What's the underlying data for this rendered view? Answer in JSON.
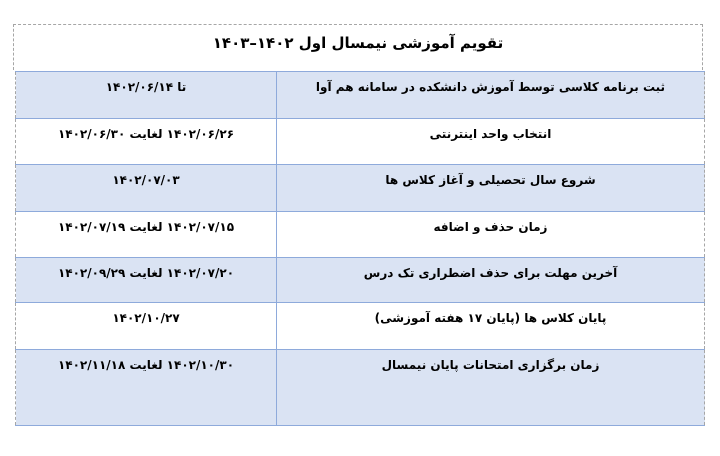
{
  "title": "تقویم آموزشی نیمسال اول ۱۴۰۲–۱۴۰۳",
  "row_colors": {
    "shaded": "#dae3f3",
    "plain": "#ffffff",
    "border": "#8eaadb"
  },
  "rows": [
    {
      "event": "ثبت برنامه کلاسی توسط آموزش دانشکده در سامانه هم آوا",
      "date": "تا ۱۴۰۲/۰۶/۱۴"
    },
    {
      "event": "انتخاب واحد اینترنتی",
      "date": "۱۴۰۲/۰۶/۲۶ لغایت ۱۴۰۲/۰۶/۳۰"
    },
    {
      "event": "شروع سال تحصیلی و آغاز کلاس ها",
      "date": "۱۴۰۲/۰۷/۰۳"
    },
    {
      "event": "زمان حذف و اضافه",
      "date": "۱۴۰۲/۰۷/۱۵ لغایت ۱۴۰۲/۰۷/۱۹"
    },
    {
      "event": "آخرین مهلت برای حذف اضطراری تک درس",
      "date": "۱۴۰۲/۰۷/۲۰ لغایت ۱۴۰۲/۰۹/۲۹"
    },
    {
      "event": "پایان کلاس ها (پایان ۱۷ هفته آموزشی)",
      "date": "۱۴۰۲/۱۰/۲۷"
    },
    {
      "event": "زمان برگزاری امتحانات پایان نیمسال",
      "date": "۱۴۰۲/۱۰/۳۰ لغایت ۱۴۰۲/۱۱/۱۸"
    }
  ]
}
